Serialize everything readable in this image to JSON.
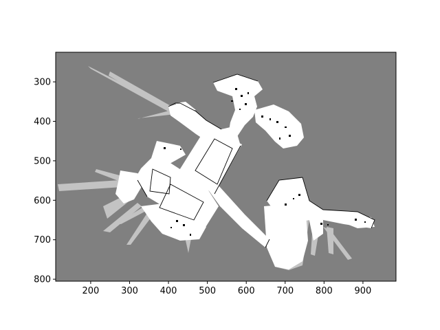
{
  "figure": {
    "background": "#ffffff",
    "plot_background": "#808080",
    "free_space_color": "#ffffff",
    "obstacle_color": "#000000"
  },
  "chart_data": {
    "type": "heatmap",
    "description_kind": "occupancy-grid map image",
    "xlim": [
      110,
      985
    ],
    "ylim_inverted": [
      805,
      225
    ],
    "x_ticks": [
      "200",
      "300",
      "400",
      "500",
      "600",
      "700",
      "800",
      "900"
    ],
    "y_ticks": [
      "300",
      "400",
      "500",
      "600",
      "700",
      "800"
    ],
    "x_tick_values": [
      200,
      300,
      400,
      500,
      600,
      700,
      800,
      900
    ],
    "y_tick_values": [
      300,
      400,
      500,
      600,
      700,
      800
    ],
    "grid": false,
    "title": "",
    "xlabel": "",
    "ylabel": ""
  }
}
